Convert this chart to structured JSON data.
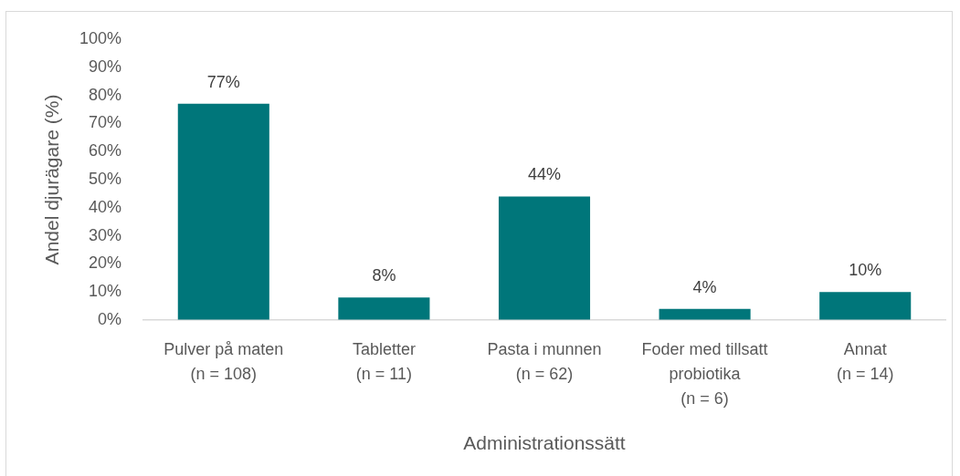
{
  "chart_data": {
    "type": "bar",
    "categories": [
      "Pulver på maten\n(n = 108)",
      "Tabletter\n(n = 11)",
      "Pasta i munnen\n(n = 62)",
      "Foder med tillsatt\nprobiotika\n(n = 6)",
      "Annat\n(n = 14)"
    ],
    "values": [
      77,
      8,
      44,
      4,
      10
    ],
    "color": "#00767a",
    "value_labels": [
      "77%",
      "8%",
      "44%",
      "4%",
      "10%"
    ],
    "xlabel": "Administrationssätt",
    "ylabel": "Andel djurägare (%)",
    "ylim": [
      0,
      100
    ],
    "yticks": [
      {
        "value": 0,
        "label": "0%"
      },
      {
        "value": 10,
        "label": "10%"
      },
      {
        "value": 20,
        "label": "20%"
      },
      {
        "value": 30,
        "label": "30%"
      },
      {
        "value": 40,
        "label": "40%"
      },
      {
        "value": 50,
        "label": "50%"
      },
      {
        "value": 60,
        "label": "60%"
      },
      {
        "value": 70,
        "label": "70%"
      },
      {
        "value": 80,
        "label": "80%"
      },
      {
        "value": 90,
        "label": "90%"
      },
      {
        "value": 100,
        "label": "100%"
      }
    ],
    "grid": false,
    "legend": false
  }
}
